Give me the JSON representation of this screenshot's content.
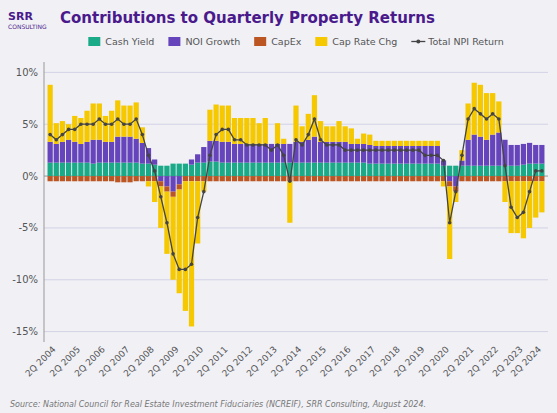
{
  "chart_data": {
    "type": "bar",
    "title": "Contributions to Quarterly Property Returns",
    "subtitle": "Source: National Council for Real Estate Investment Fiduciaries (NCREIF), SRR Consulting, August 2024.",
    "annotations": [
      "SRR",
      "CONSULTING"
    ],
    "stacked": true,
    "grid": true,
    "legend": "top",
    "categories": [
      null,
      "2Q 2004",
      null,
      null,
      null,
      "2Q 2005",
      null,
      null,
      null,
      "2Q 2006",
      null,
      null,
      null,
      "2Q 2007",
      null,
      null,
      null,
      "2Q 2008",
      null,
      null,
      null,
      "2Q 2009",
      null,
      null,
      null,
      "2Q 2010",
      null,
      null,
      null,
      "2Q 2011",
      null,
      null,
      null,
      "2Q 2012",
      null,
      null,
      null,
      "2Q 2013",
      null,
      null,
      null,
      "2Q 2014",
      null,
      null,
      null,
      "2Q 2015",
      null,
      null,
      null,
      "2Q 2016",
      null,
      null,
      null,
      "2Q 2017",
      null,
      null,
      null,
      "2Q 2018",
      null,
      null,
      null,
      "2Q 2019",
      null,
      null,
      null,
      "2Q 2020",
      null,
      null,
      null,
      "2Q 2021",
      null,
      null,
      null,
      "2Q 2022",
      null,
      null,
      null,
      "2Q 2023",
      null,
      null,
      "2Q 2024"
    ],
    "ylim": [
      -16,
      11
    ],
    "yticks": [
      {
        "value": -15,
        "label": "-15%"
      },
      {
        "value": -10,
        "label": "-10%"
      },
      {
        "value": -5,
        "label": "-5%"
      },
      {
        "value": 0,
        "label": "0%"
      },
      {
        "value": 5,
        "label": "5%"
      },
      {
        "value": 10,
        "label": "10%"
      }
    ],
    "series": [
      {
        "name": "Cash Yield",
        "type": "bar",
        "color": "#1aaa88",
        "values": [
          1.3,
          1.3,
          1.3,
          1.3,
          1.3,
          1.3,
          1.3,
          1.2,
          1.3,
          1.3,
          1.3,
          1.3,
          1.3,
          1.3,
          1.3,
          1.2,
          1.2,
          1.1,
          1.0,
          1.0,
          1.2,
          1.2,
          1.2,
          1.1,
          1.3,
          1.3,
          1.4,
          1.4,
          1.3,
          1.3,
          1.3,
          1.3,
          1.3,
          1.3,
          1.3,
          1.3,
          1.3,
          1.3,
          1.3,
          1.3,
          1.3,
          1.3,
          1.3,
          1.3,
          1.3,
          1.3,
          1.3,
          1.3,
          1.3,
          1.3,
          1.3,
          1.3,
          1.2,
          1.2,
          1.2,
          1.2,
          1.2,
          1.2,
          1.2,
          1.2,
          1.2,
          1.2,
          1.2,
          1.2,
          1.0,
          1.0,
          1.0,
          1.0,
          1.0,
          1.0,
          1.0,
          1.0,
          1.0,
          1.0,
          1.0,
          1.0,
          1.0,
          1.1,
          1.2,
          1.2,
          1.2
        ]
      },
      {
        "name": "NOI Growth",
        "type": "bar",
        "color": "#6644bb",
        "values": [
          2.0,
          1.8,
          2.0,
          2.2,
          2.0,
          1.8,
          2.0,
          2.3,
          2.2,
          2.0,
          2.0,
          2.5,
          2.5,
          2.5,
          2.3,
          2.0,
          1.5,
          0.5,
          -0.5,
          -1.0,
          -1.5,
          -0.8,
          0.0,
          0.5,
          0.8,
          1.5,
          2.0,
          2.0,
          2.0,
          2.0,
          1.8,
          1.8,
          1.8,
          1.8,
          1.8,
          1.8,
          1.8,
          1.8,
          1.8,
          1.8,
          2.0,
          2.0,
          2.2,
          2.5,
          2.0,
          2.0,
          2.0,
          2.0,
          2.0,
          1.8,
          1.8,
          1.8,
          1.8,
          1.7,
          1.7,
          1.7,
          1.7,
          1.7,
          1.7,
          1.7,
          1.7,
          1.7,
          1.7,
          1.7,
          0.5,
          -0.5,
          -1.0,
          0.5,
          2.5,
          3.0,
          2.8,
          2.5,
          3.0,
          3.2,
          2.5,
          2.0,
          2.0,
          2.0,
          2.0,
          1.8,
          1.8
        ]
      },
      {
        "name": "CapEx",
        "type": "bar",
        "color": "#bb5522",
        "values": [
          -0.5,
          -0.5,
          -0.5,
          -0.5,
          -0.5,
          -0.5,
          -0.5,
          -0.5,
          -0.5,
          -0.5,
          -0.5,
          -0.6,
          -0.6,
          -0.6,
          -0.5,
          -0.5,
          -0.5,
          -0.5,
          -0.5,
          -0.5,
          -0.5,
          -0.5,
          -0.5,
          -0.5,
          -0.5,
          -0.5,
          -0.5,
          -0.5,
          -0.5,
          -0.5,
          -0.5,
          -0.5,
          -0.5,
          -0.5,
          -0.5,
          -0.5,
          -0.5,
          -0.5,
          -0.5,
          -0.5,
          -0.5,
          -0.5,
          -0.5,
          -0.5,
          -0.5,
          -0.5,
          -0.5,
          -0.5,
          -0.5,
          -0.5,
          -0.5,
          -0.5,
          -0.5,
          -0.5,
          -0.5,
          -0.5,
          -0.5,
          -0.5,
          -0.5,
          -0.5,
          -0.5,
          -0.5,
          -0.5,
          -0.5,
          -0.5,
          -0.5,
          -0.5,
          -0.5,
          -0.5,
          -0.5,
          -0.5,
          -0.5,
          -0.5,
          -0.5,
          -0.5,
          -0.5,
          -0.5,
          -0.5,
          -0.5,
          -0.5,
          -0.5
        ]
      },
      {
        "name": "Cap Rate Chg",
        "type": "bar",
        "color": "#f5c800",
        "values": [
          5.5,
          2.0,
          2.0,
          1.5,
          2.5,
          2.5,
          3.0,
          3.5,
          3.5,
          2.5,
          3.0,
          3.5,
          3.0,
          3.0,
          3.5,
          1.5,
          -0.5,
          -2.0,
          -4.0,
          -6.0,
          -8.0,
          -10.0,
          -12.5,
          -14.0,
          -6.0,
          -1.0,
          3.0,
          3.5,
          3.5,
          3.5,
          2.5,
          2.5,
          2.5,
          2.5,
          2.0,
          2.5,
          0.0,
          2.0,
          0.5,
          -4.0,
          3.5,
          1.5,
          2.5,
          4.0,
          2.0,
          1.5,
          1.5,
          2.0,
          1.5,
          1.5,
          0.5,
          1.0,
          1.0,
          0.5,
          0.5,
          0.5,
          0.5,
          0.5,
          0.5,
          0.5,
          0.5,
          0.5,
          0.5,
          0.5,
          -0.5,
          -7.0,
          -1.0,
          1.0,
          3.5,
          5.0,
          5.0,
          4.5,
          4.0,
          3.0,
          -2.0,
          -5.0,
          -5.0,
          -5.5,
          -4.5,
          -3.5,
          -3.0
        ]
      },
      {
        "name": "Total NPI Return",
        "type": "line",
        "color": "#444444",
        "marker": "circle",
        "values": [
          4.0,
          3.5,
          4.0,
          4.5,
          4.5,
          5.0,
          5.0,
          5.0,
          5.5,
          5.0,
          5.0,
          5.5,
          5.0,
          5.0,
          5.5,
          4.0,
          2.0,
          0.5,
          -2.0,
          -4.5,
          -7.5,
          -9.0,
          -9.0,
          -8.5,
          -4.0,
          -1.5,
          2.0,
          4.0,
          4.5,
          4.5,
          3.5,
          3.5,
          3.0,
          3.0,
          3.0,
          3.0,
          2.5,
          3.0,
          2.0,
          -0.5,
          3.5,
          3.0,
          4.0,
          5.5,
          3.5,
          3.0,
          3.0,
          3.0,
          2.5,
          2.5,
          2.5,
          2.5,
          2.5,
          2.5,
          2.5,
          2.5,
          2.5,
          2.5,
          2.5,
          2.5,
          2.5,
          2.0,
          2.0,
          2.0,
          1.5,
          -4.5,
          -1.5,
          2.0,
          5.5,
          6.5,
          6.0,
          5.5,
          6.0,
          5.5,
          1.0,
          -3.0,
          -4.0,
          -3.5,
          -1.5,
          0.5,
          0.5
        ]
      }
    ]
  }
}
